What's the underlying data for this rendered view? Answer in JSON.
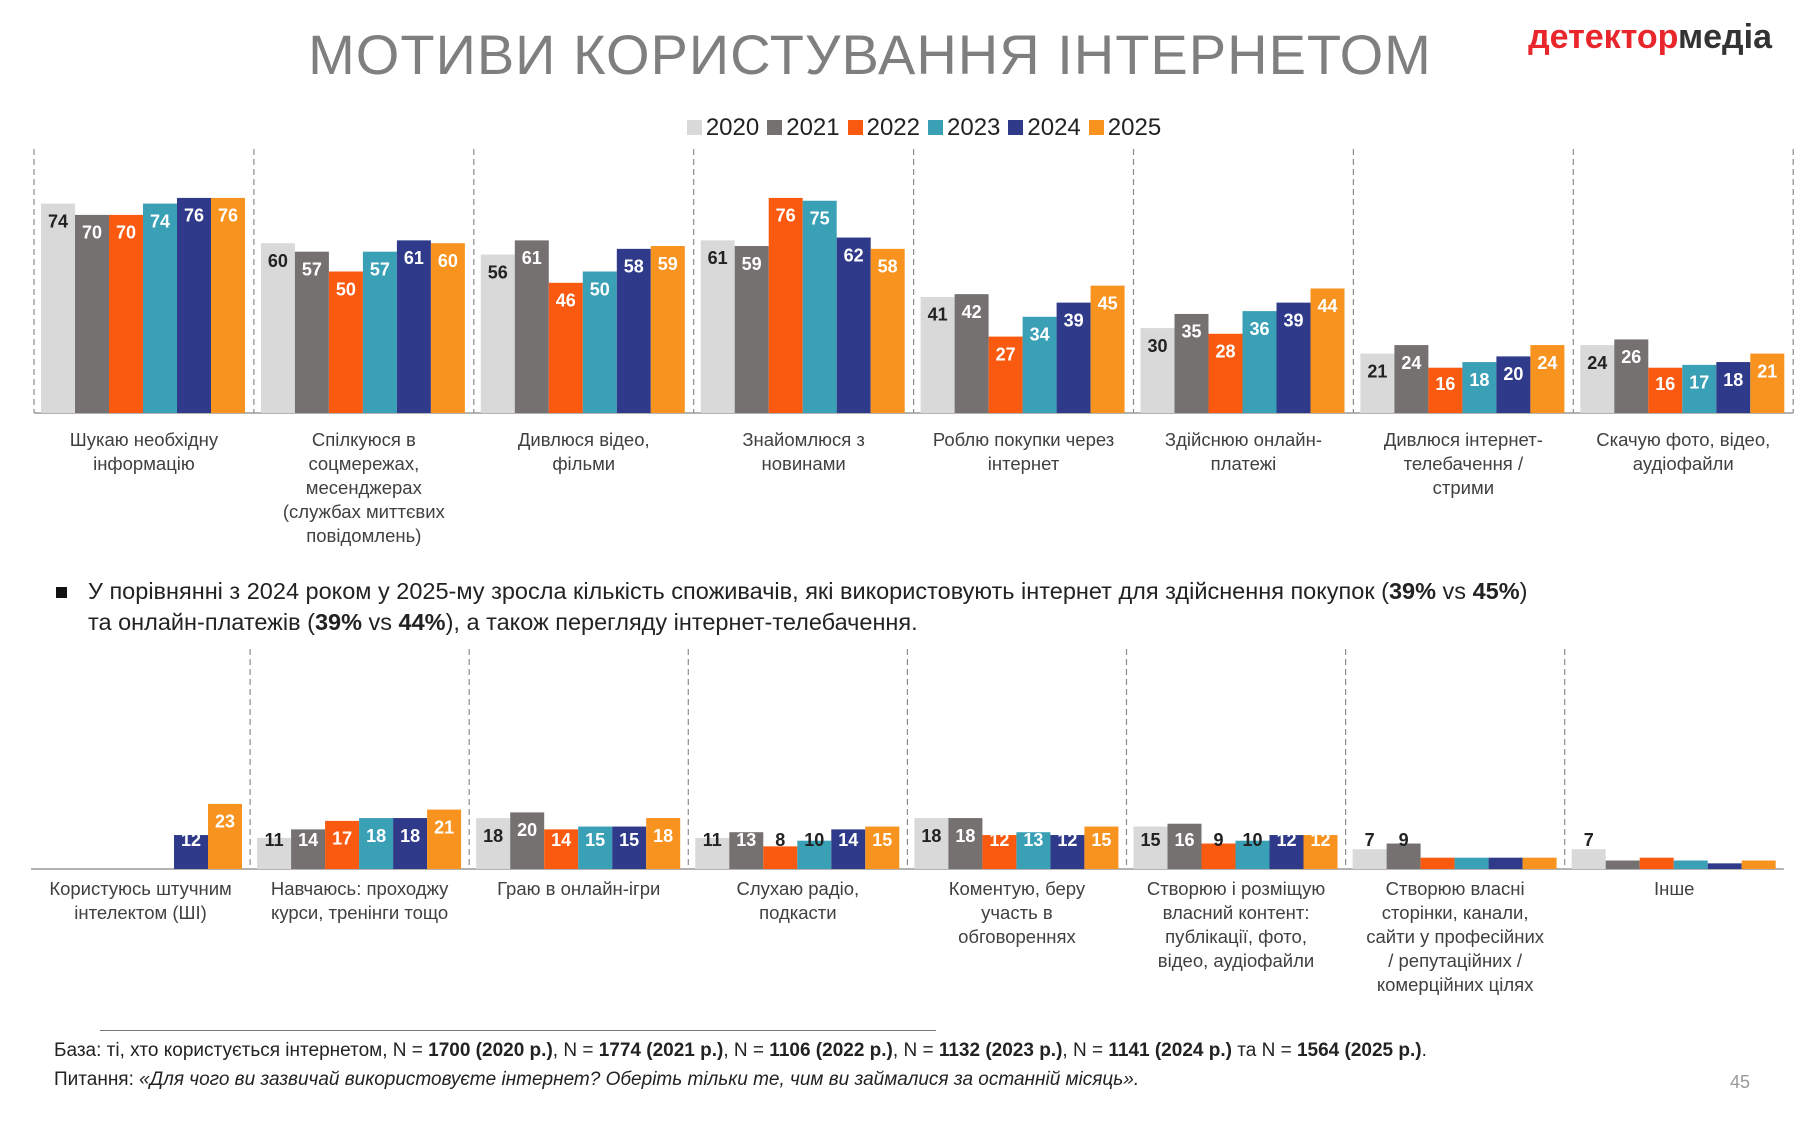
{
  "title": "МОТИВИ КОРИСТУВАННЯ ІНТЕРНЕТОМ",
  "logo": [
    "детектор",
    "медіа"
  ],
  "chart_data": [
    {
      "type": "bar",
      "categories": [
        "Шукаю необхідну\nінформацію",
        "Спілкуюся в\nсоцмережах,\nмесенджерах\n(службах миттєвих\nповідомлень)",
        "Дивлюся відео,\nфільми",
        "Знайомлюся з\nновинами",
        "Роблю покупки через\nінтернет",
        "Здійснюю онлайн-\nплатежі",
        "Дивлюся інтернет-\nтелебачення /\nстрими",
        "Скачую фото, відео,\nаудіофайли"
      ],
      "series": [
        {
          "name": "2020",
          "color": "#d9d9d9",
          "values": [
            74,
            60,
            56,
            61,
            41,
            30,
            21,
            24
          ]
        },
        {
          "name": "2021",
          "color": "#767171",
          "values": [
            70,
            57,
            61,
            59,
            42,
            35,
            24,
            26
          ]
        },
        {
          "name": "2022",
          "color": "#fa5a0f",
          "values": [
            70,
            50,
            46,
            76,
            27,
            28,
            16,
            16
          ]
        },
        {
          "name": "2023",
          "color": "#3aa0b6",
          "values": [
            74,
            57,
            50,
            75,
            34,
            36,
            18,
            17
          ]
        },
        {
          "name": "2024",
          "color": "#2f3b8a",
          "values": [
            76,
            61,
            58,
            62,
            39,
            39,
            20,
            18
          ]
        },
        {
          "name": "2025",
          "color": "#f7931e",
          "values": [
            76,
            60,
            59,
            58,
            45,
            44,
            24,
            21
          ]
        }
      ]
    },
    {
      "type": "bar",
      "categories": [
        "Користуюсь штучним\nінтелектом (ШІ)",
        "Навчаюсь: проходжу\nкурси, тренінги тощо",
        "Граю в онлайн-ігри",
        "Слухаю радіо,\nподкасти",
        "Коментую, беру\nучасть в\nобговореннях",
        "Створюю і розміщую\nвласний контент:\nпублікації, фото,\nвідео, аудіофайли",
        "Створюю власні\nсторінки, канали,\nсайти у професійних\n/ репутаційних /\nкомерційних цілях",
        "Інше"
      ],
      "series": [
        {
          "color": "#d9d9d9",
          "values": [
            null,
            11,
            18,
            11,
            18,
            15,
            7,
            7
          ]
        },
        {
          "color": "#767171",
          "values": [
            null,
            14,
            20,
            13,
            18,
            16,
            9,
            3
          ]
        },
        {
          "color": "#fa5a0f",
          "values": [
            null,
            17,
            14,
            8,
            12,
            9,
            4,
            4
          ]
        },
        {
          "color": "#3aa0b6",
          "values": [
            null,
            18,
            15,
            10,
            13,
            10,
            4,
            3
          ]
        },
        {
          "color": "#2f3b8a",
          "values": [
            12,
            18,
            15,
            14,
            12,
            12,
            4,
            2
          ]
        },
        {
          "color": "#f7931e",
          "values": [
            23,
            21,
            18,
            15,
            15,
            12,
            4,
            3
          ]
        }
      ]
    }
  ],
  "note": [
    {
      "text": "У порівнянні з 2024 роком у 2025-му зросла кількість споживачів, які використовують інтернет для здійснення покупок (",
      "bold": false
    },
    {
      "text": "39%",
      "bold": true
    },
    {
      "text": " vs ",
      "bold": false
    },
    {
      "text": "45%",
      "bold": true
    },
    {
      "text": ")\nта онлайн-платежів (",
      "bold": false
    },
    {
      "text": "39%",
      "bold": true
    },
    {
      "text": " vs ",
      "bold": false
    },
    {
      "text": "44%",
      "bold": true
    },
    {
      "text": "), а також перегляду інтернет-телебачення.",
      "bold": false
    }
  ],
  "footnote": [
    [
      {
        "text": "База: ті, хто користується інтернетом, N = ",
        "bold": false
      },
      {
        "text": "1700 (2020 р.)",
        "bold": true
      },
      {
        "text": ", N = ",
        "bold": false
      },
      {
        "text": "1774 (2021 р.)",
        "bold": true
      },
      {
        "text": ", N = ",
        "bold": false
      },
      {
        "text": "1106 (2022 р.)",
        "bold": true
      },
      {
        "text": ", N = ",
        "bold": false
      },
      {
        "text": "1132 (2023 р.)",
        "bold": true
      },
      {
        "text": ", N = ",
        "bold": false
      },
      {
        "text": "1141 (2024 р.)",
        "bold": true
      },
      {
        "text": " та N = ",
        "bold": false
      },
      {
        "text": "1564 (2025 р.)",
        "bold": true
      },
      {
        "text": ".",
        "bold": false
      }
    ],
    [
      {
        "text": "Питання: ",
        "italic": false
      },
      {
        "text": "«Для чого ви зазвичай використовуєте інтернет? Оберіть тільки те, чим ви займалися за останній місяць».",
        "italic": true
      }
    ]
  ],
  "page_number": "45"
}
